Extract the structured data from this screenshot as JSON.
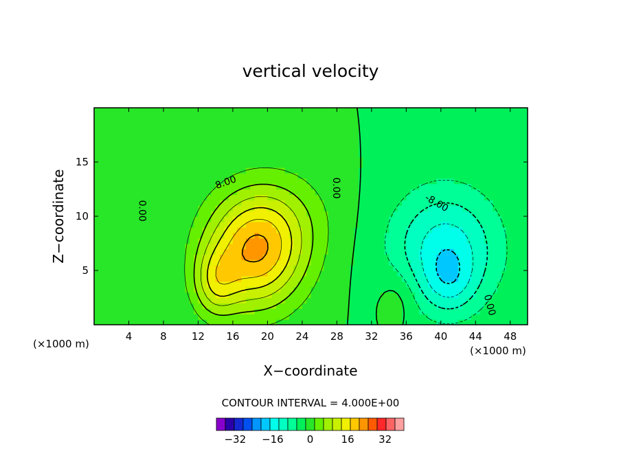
{
  "chart_data": {
    "type": "heatmap",
    "title": "vertical velocity",
    "xlabel": "X−coordinate",
    "ylabel": "Z−coordinate",
    "x_unit_left": "(×1000 m)",
    "x_unit_right": "(×1000 m)",
    "xlim": [
      0,
      50
    ],
    "ylim": [
      0,
      20
    ],
    "x_ticks": [
      4,
      8,
      12,
      16,
      20,
      24,
      28,
      32,
      36,
      40,
      44,
      48
    ],
    "y_ticks": [
      5,
      10,
      15
    ],
    "x_tick_labels": [
      "4",
      "8",
      "12",
      "16",
      "20",
      "24",
      "28",
      "32",
      "36",
      "40",
      "44",
      "48"
    ],
    "y_tick_labels": [
      "5",
      "10",
      "15"
    ],
    "contour_interval_text": "CONTOUR INTERVAL = 4.000E+00",
    "contour_interval": 4,
    "contour_labels": [
      {
        "text": "8.00",
        "x": 15.2,
        "z": 13.1,
        "angle": -20
      },
      {
        "text": "0.00",
        "x": 5.5,
        "z": 10.5,
        "angle": 90
      },
      {
        "text": "0.00",
        "x": 27.9,
        "z": 12.6,
        "angle": 90
      },
      {
        "text": "-8.00",
        "x": 39.5,
        "z": 11.2,
        "angle": 30
      },
      {
        "text": "0.00",
        "x": 45.6,
        "z": 1.8,
        "angle": 75
      }
    ],
    "field_features": [
      {
        "kind": "updraft",
        "x": 18.5,
        "z": 6.5,
        "sx": 4.0,
        "sz": 3.6,
        "amp": 22
      },
      {
        "kind": "updraft",
        "x": 21.0,
        "z": 10.0,
        "sx": 4.5,
        "sz": 3.2,
        "amp": 6
      },
      {
        "kind": "updraft",
        "x": 14.0,
        "z": 3.8,
        "sx": 1.8,
        "sz": 2.2,
        "amp": 10
      },
      {
        "kind": "updraft",
        "x": 35.0,
        "z": 2.5,
        "sx": 1.6,
        "sz": 2.0,
        "amp": 4
      },
      {
        "kind": "downdraft",
        "x": 40.5,
        "z": 7.0,
        "sx": 4.5,
        "sz": 4.0,
        "amp": -14
      },
      {
        "kind": "downdraft",
        "x": 41.0,
        "z": 4.0,
        "sx": 2.0,
        "sz": 2.0,
        "amp": -6
      }
    ],
    "colorbar": {
      "ticks": [
        -32,
        -16,
        0,
        16,
        32
      ],
      "tick_labels": [
        "−32",
        "−16",
        "0",
        "16",
        "32"
      ],
      "levels": [
        -40,
        -36,
        -32,
        -28,
        -24,
        -20,
        -16,
        -12,
        -8,
        -4,
        0,
        4,
        8,
        12,
        16,
        20,
        24,
        28,
        32,
        36,
        40
      ],
      "colors": [
        "#8800cc",
        "#2a00a8",
        "#1428d2",
        "#0050f0",
        "#0096ff",
        "#00c8ff",
        "#00ffea",
        "#00ffc0",
        "#00ff96",
        "#00f05a",
        "#28e628",
        "#64f000",
        "#a0f000",
        "#c8f000",
        "#f0f000",
        "#ffc800",
        "#ff9600",
        "#ff5a00",
        "#ff2828",
        "#ff6464",
        "#ffa0a0"
      ]
    }
  }
}
